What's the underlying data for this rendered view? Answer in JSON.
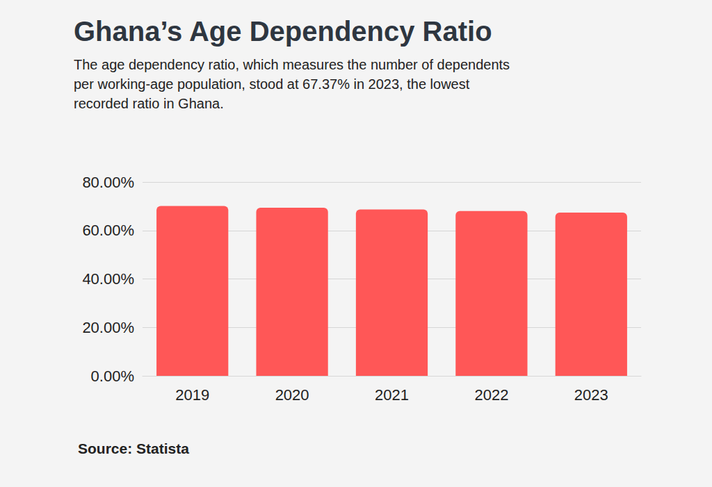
{
  "chart_data": {
    "type": "bar",
    "title": "Ghana’s Age Dependency Ratio",
    "subtitle": "The age dependency ratio, which measures the number of dependents per working-age population, stood at 67.37% in 2023, the lowest recorded ratio in Ghana.",
    "source": "Source: Statista",
    "categories": [
      "2019",
      "2020",
      "2021",
      "2022",
      "2023"
    ],
    "values": [
      70.1,
      69.4,
      68.7,
      68.0,
      67.37
    ],
    "color": "#ff5757",
    "ylim": [
      0,
      80
    ],
    "yticks": [
      {
        "value": 0,
        "label": "0.00%"
      },
      {
        "value": 20,
        "label": "20.00%"
      },
      {
        "value": 40,
        "label": "40.00%"
      },
      {
        "value": 60,
        "label": "60.00%"
      },
      {
        "value": 80,
        "label": "80.00%"
      }
    ],
    "grid": true
  }
}
